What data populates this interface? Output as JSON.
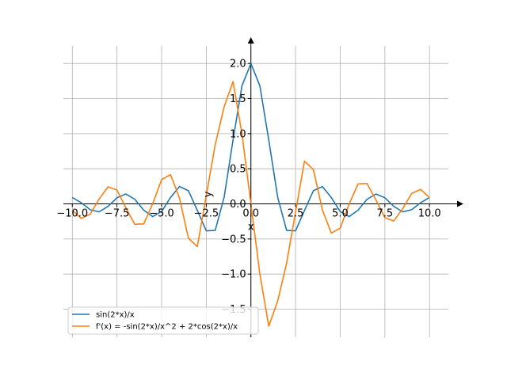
{
  "chart_data": {
    "type": "line",
    "xlabel": "x",
    "ylabel": "y",
    "xlim": [
      -10.5,
      11.5
    ],
    "ylim": [
      -1.9,
      2.25
    ],
    "grid": true,
    "legend_position": "lower-left",
    "x_ticks": [
      -10.0,
      -7.5,
      -5.0,
      -2.5,
      0.0,
      2.5,
      5.0,
      7.5,
      10.0
    ],
    "x_tick_labels": [
      "−10.0",
      "−7.5",
      "−5.0",
      "−2.5",
      "0.0",
      "2.5",
      "5.0",
      "7.5",
      "10.0"
    ],
    "y_ticks": [
      -1.5,
      -1.0,
      -0.5,
      0.0,
      0.5,
      1.0,
      1.5,
      2.0
    ],
    "y_tick_labels": [
      "−1.5",
      "−1.0",
      "−0.5",
      "0.0",
      "0.5",
      "1.0",
      "1.5",
      "2.0"
    ],
    "series": [
      {
        "name": "sin(2*x)/x",
        "color": "#1f77b4",
        "x": [
          -10,
          -9.5,
          -9,
          -8.5,
          -8,
          -7.5,
          -7,
          -6.5,
          -6,
          -5.5,
          -5,
          -4.5,
          -4,
          -3.5,
          -3,
          -2.5,
          -2,
          -1.5,
          -1,
          -0.5,
          0,
          0.5,
          1,
          1.5,
          2,
          2.5,
          3,
          3.5,
          4,
          4.5,
          5,
          5.5,
          6,
          6.5,
          7,
          7.5,
          8,
          8.5,
          9,
          9.5,
          10
        ],
        "y": [
          0.091,
          0.016,
          -0.083,
          -0.114,
          -0.036,
          0.087,
          0.141,
          0.065,
          -0.09,
          -0.181,
          -0.109,
          0.091,
          0.247,
          0.188,
          -0.093,
          -0.384,
          -0.378,
          0.094,
          0.909,
          1.683,
          2.0,
          1.683,
          0.909,
          0.094,
          -0.378,
          -0.384,
          -0.093,
          0.188,
          0.247,
          0.091,
          -0.109,
          -0.181,
          -0.09,
          0.065,
          0.141,
          0.087,
          -0.036,
          -0.114,
          -0.083,
          0.016,
          0.091
        ]
      },
      {
        "name": "f'(x) = -sin(2*x)/x^2 + 2*cos(2*x)/x",
        "color": "#ff7f0e",
        "x": [
          -10,
          -9.5,
          -9,
          -8.5,
          -8,
          -7.5,
          -7,
          -6.5,
          -6,
          -5.5,
          -5,
          -4.5,
          -4,
          -3.5,
          -3,
          -2.5,
          -2,
          -1.5,
          -1,
          -0.5,
          0,
          0.5,
          1,
          1.5,
          2,
          2.5,
          3,
          3.5,
          4,
          4.5,
          5,
          5.5,
          6,
          6.5,
          7,
          7.5,
          8,
          8.5,
          9,
          9.5,
          10
        ],
        "y": [
          -0.09,
          -0.206,
          -0.148,
          0.068,
          0.243,
          0.197,
          -0.057,
          -0.291,
          -0.285,
          0.002,
          0.346,
          0.416,
          0.084,
          -0.489,
          -0.609,
          0.116,
          0.843,
          1.383,
          1.742,
          0.997,
          0.0,
          -0.997,
          -1.742,
          -1.383,
          -0.843,
          -0.116,
          0.609,
          0.489,
          -0.084,
          -0.416,
          -0.346,
          -0.002,
          0.285,
          0.291,
          0.057,
          -0.197,
          -0.243,
          -0.068,
          0.148,
          0.206,
          0.09
        ]
      }
    ]
  }
}
